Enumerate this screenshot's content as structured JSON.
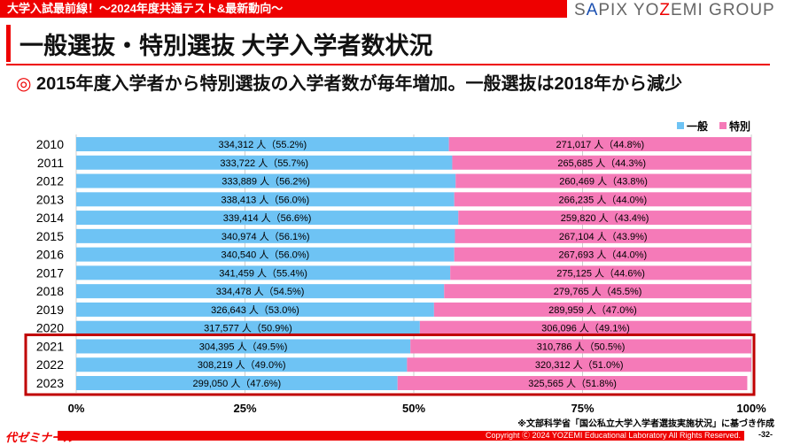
{
  "header": {
    "banner": "大学入試最前線！～2024年度共通テスト&最新動向～",
    "brand_parts": [
      "S",
      "A",
      "PIX YO",
      "Z",
      "EMI GROUP"
    ]
  },
  "title": "一般選抜・特別選抜 大学入学者数状況",
  "subtitle_mark": "◎",
  "subtitle": "2015年度入学者から特別選抜の入学者数が毎年増加。一般選抜は2018年から減少",
  "chart_data": {
    "type": "bar",
    "stacked": "100%",
    "orientation": "horizontal",
    "categories": [
      "2010",
      "2011",
      "2012",
      "2013",
      "2014",
      "2015",
      "2016",
      "2017",
      "2018",
      "2019",
      "2020",
      "2021",
      "2022",
      "2023"
    ],
    "series": [
      {
        "name": "一般",
        "color": "#6ec3f4",
        "values": [
          55.2,
          55.7,
          56.2,
          56.0,
          56.6,
          56.1,
          56.0,
          55.4,
          54.5,
          53.0,
          50.9,
          49.5,
          49.0,
          47.6
        ],
        "labels": [
          "334,312 人（55.2%)",
          "333,722 人（55.7%)",
          "333,889 人（56.2%)",
          "338,413 人（56.0%)",
          "339,414 人（56.6%)",
          "340,974 人（56.1%)",
          "340,540 人（56.0%)",
          "341,459 人（55.4%)",
          "334,478 人（54.5%)",
          "326,643 人（53.0%)",
          "317,577 人（50.9%)",
          "304,395 人（49.5%)",
          "308,219 人（49.0%)",
          "299,050 人（47.6%)"
        ]
      },
      {
        "name": "特別",
        "color": "#f57ab8",
        "values": [
          44.8,
          44.3,
          43.8,
          44.0,
          43.4,
          43.9,
          44.0,
          44.6,
          45.5,
          47.0,
          49.1,
          50.5,
          51.0,
          51.8
        ],
        "labels": [
          "271,017 人（44.8%)",
          "265,685 人（44.3%)",
          "260,469 人（43.8%)",
          "266,235 人（44.0%)",
          "259,820 人（43.4%)",
          "267,104 人（43.9%)",
          "267,693 人（44.0%)",
          "275,125 人（44.6%)",
          "279,765 人（45.5%)",
          "289,959 人（47.0%)",
          "306,096 人（49.1%)",
          "310,786 人（50.5%)",
          "320,312 人（51.0%)",
          "325,565 人（51.8%)"
        ]
      }
    ],
    "xticks": [
      "0%",
      "25%",
      "50%",
      "75%",
      "100%"
    ],
    "xlim": [
      0,
      100
    ],
    "legend": "top-right",
    "highlight": [
      "2021",
      "2022",
      "2023"
    ],
    "highlight_color": "#c00000"
  },
  "source": "※文部科学省「国公私立大学入学者選抜実施状況」に基づき作成",
  "footer": {
    "logo": "代ゼミナール",
    "copyright": "Copyright Ⓒ 2024 YOZEMI Educational Laboratory All Rights Reserved.",
    "page": "-32-"
  }
}
